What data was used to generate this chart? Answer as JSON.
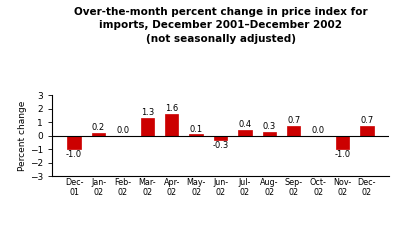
{
  "categories": [
    "Dec-\n01",
    "Jan-\n02",
    "Feb-\n02",
    "Mar-\n02",
    "Apr-\n02",
    "May-\n02",
    "Jun-\n02",
    "Jul-\n02",
    "Aug-\n02",
    "Sep-\n02",
    "Oct-\n02",
    "Nov-\n02",
    "Dec-\n02"
  ],
  "values": [
    -1.0,
    0.2,
    0.0,
    1.3,
    1.6,
    0.1,
    -0.3,
    0.4,
    0.3,
    0.7,
    0.0,
    -1.0,
    0.7
  ],
  "bar_color": "#cc0000",
  "title_line1": "Over-the-month percent change in price index for",
  "title_line2": "imports, December 2001–December 2002",
  "title_line3": "(not seasonally adjusted)",
  "ylabel": "Percent change",
  "ylim": [
    -3,
    3
  ],
  "yticks": [
    -3,
    -2,
    -1,
    0,
    1,
    2,
    3
  ],
  "background_color": "#ffffff",
  "label_fontsize": 6.0,
  "title_fontsize": 7.5,
  "ylabel_fontsize": 6.5,
  "xtick_fontsize": 5.8,
  "ytick_fontsize": 6.5
}
